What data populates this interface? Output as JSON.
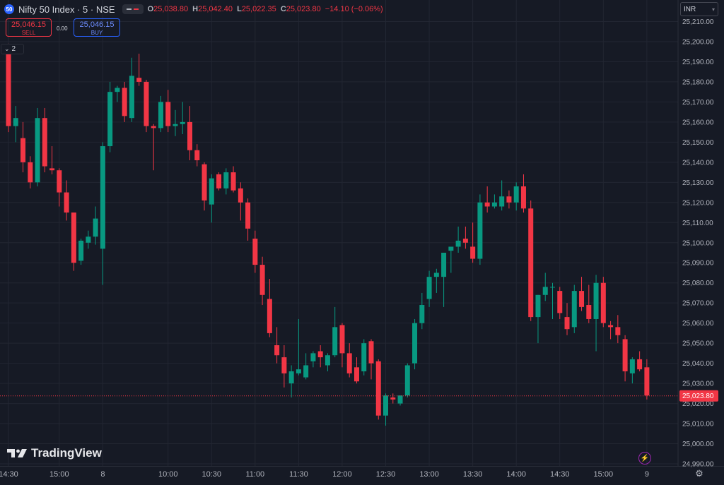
{
  "header": {
    "badge": "50",
    "title": "Nifty 50 Index · 5 · NSE",
    "ohlc": [
      {
        "k": "O",
        "v": "25,038.80"
      },
      {
        "k": "H",
        "v": "25,042.40"
      },
      {
        "k": "L",
        "v": "25,022.35"
      },
      {
        "k": "C",
        "v": "25,023.80"
      },
      {
        "k": "",
        "v": "−14.10 (−0.06%)"
      }
    ]
  },
  "trade": {
    "sell_price": "25,046.15",
    "sell_label": "SELL",
    "spread": "0.00",
    "buy_price": "25,046.15",
    "buy_label": "BUY"
  },
  "legend_count": "2",
  "currency": "INR",
  "brand": "TradingView",
  "colors": {
    "up": "#089981",
    "down": "#f23645",
    "bg": "#161a25",
    "grid": "#222632",
    "text": "#b2b5be"
  },
  "icons": [
    "index-badge-icon",
    "toggle-icon",
    "chevron-down-icon",
    "tradingview-logo-icon",
    "lightning-icon",
    "settings-icon"
  ],
  "chart_data": {
    "type": "candlestick",
    "last_price": 25023.8,
    "last_price_label": "25,023.80",
    "ylim": [
      24990,
      25210
    ],
    "y_ticks": [
      24990,
      25000,
      25010,
      25020,
      25030,
      25040,
      25050,
      25060,
      25070,
      25080,
      25090,
      25100,
      25110,
      25120,
      25130,
      25140,
      25150,
      25160,
      25170,
      25180,
      25190,
      25200,
      25210
    ],
    "y_tick_labels": [
      "24,990.00",
      "25,000.00",
      "25,010.00",
      "25,020.00",
      "25,030.00",
      "25,040.00",
      "25,050.00",
      "25,060.00",
      "25,070.00",
      "25,080.00",
      "25,090.00",
      "25,100.00",
      "25,110.00",
      "25,120.00",
      "25,130.00",
      "25,140.00",
      "25,150.00",
      "25,160.00",
      "25,170.00",
      "25,180.00",
      "25,190.00",
      "25,200.00",
      "25,210.00"
    ],
    "x_ticks": [
      {
        "i": 0,
        "label": "14:30"
      },
      {
        "i": 7,
        "label": "15:00"
      },
      {
        "i": 13,
        "label": "8"
      },
      {
        "i": 22,
        "label": "10:00"
      },
      {
        "i": 28,
        "label": "10:30"
      },
      {
        "i": 34,
        "label": "11:00"
      },
      {
        "i": 40,
        "label": "11:30"
      },
      {
        "i": 46,
        "label": "12:00"
      },
      {
        "i": 52,
        "label": "12:30"
      },
      {
        "i": 58,
        "label": "13:00"
      },
      {
        "i": 64,
        "label": "13:30"
      },
      {
        "i": 70,
        "label": "14:00"
      },
      {
        "i": 76,
        "label": "14:30"
      },
      {
        "i": 82,
        "label": "15:00"
      },
      {
        "i": 88,
        "label": "9"
      }
    ],
    "candles": [
      {
        "o": 25197,
        "h": 25199,
        "l": 25155,
        "c": 25158
      },
      {
        "o": 25158,
        "h": 25168,
        "l": 25150,
        "c": 25162
      },
      {
        "o": 25152,
        "h": 25160,
        "l": 25135,
        "c": 25140
      },
      {
        "o": 25140,
        "h": 25143,
        "l": 25127,
        "c": 25130
      },
      {
        "o": 25130,
        "h": 25167,
        "l": 25128,
        "c": 25162
      },
      {
        "o": 25162,
        "h": 25167,
        "l": 25135,
        "c": 25138
      },
      {
        "o": 25137,
        "h": 25148,
        "l": 25134,
        "c": 25136
      },
      {
        "o": 25136,
        "h": 25137,
        "l": 25118,
        "c": 25125
      },
      {
        "o": 25125,
        "h": 25131,
        "l": 25111,
        "c": 25115
      },
      {
        "o": 25115,
        "h": 25115,
        "l": 25086,
        "c": 25090
      },
      {
        "o": 25091,
        "h": 25102,
        "l": 25089,
        "c": 25101
      },
      {
        "o": 25100,
        "h": 25106,
        "l": 25097,
        "c": 25103
      },
      {
        "o": 25103,
        "h": 25118,
        "l": 25099,
        "c": 25112
      },
      {
        "o": 25097,
        "h": 25150,
        "l": 25079,
        "c": 25148
      },
      {
        "o": 25148,
        "h": 25180,
        "l": 25145,
        "c": 25175
      },
      {
        "o": 25175,
        "h": 25178,
        "l": 25170,
        "c": 25177
      },
      {
        "o": 25177,
        "h": 25180,
        "l": 25160,
        "c": 25163
      },
      {
        "o": 25162,
        "h": 25192,
        "l": 25160,
        "c": 25183
      },
      {
        "o": 25182,
        "h": 25194,
        "l": 25178,
        "c": 25180
      },
      {
        "o": 25180,
        "h": 25181,
        "l": 25155,
        "c": 25158
      },
      {
        "o": 25158,
        "h": 25159,
        "l": 25136,
        "c": 25157
      },
      {
        "o": 25157,
        "h": 25173,
        "l": 25155,
        "c": 25170
      },
      {
        "o": 25170,
        "h": 25176,
        "l": 25155,
        "c": 25158
      },
      {
        "o": 25158,
        "h": 25166,
        "l": 25153,
        "c": 25159
      },
      {
        "o": 25159,
        "h": 25170,
        "l": 25154,
        "c": 25160
      },
      {
        "o": 25160,
        "h": 25168,
        "l": 25141,
        "c": 25146
      },
      {
        "o": 25146,
        "h": 25149,
        "l": 25138,
        "c": 25141
      },
      {
        "o": 25139,
        "h": 25140,
        "l": 25116,
        "c": 25121
      },
      {
        "o": 25119,
        "h": 25134,
        "l": 25110,
        "c": 25132
      },
      {
        "o": 25134,
        "h": 25135,
        "l": 25126,
        "c": 25127
      },
      {
        "o": 25127,
        "h": 25137,
        "l": 25124,
        "c": 25135
      },
      {
        "o": 25135,
        "h": 25138,
        "l": 25125,
        "c": 25126
      },
      {
        "o": 25127,
        "h": 25130,
        "l": 25111,
        "c": 25120
      },
      {
        "o": 25120,
        "h": 25122,
        "l": 25101,
        "c": 25107
      },
      {
        "o": 25102,
        "h": 25106,
        "l": 25085,
        "c": 25089
      },
      {
        "o": 25089,
        "h": 25093,
        "l": 25069,
        "c": 25074
      },
      {
        "o": 25072,
        "h": 25082,
        "l": 25053,
        "c": 25055
      },
      {
        "o": 25049,
        "h": 25058,
        "l": 25040,
        "c": 25044
      },
      {
        "o": 25043,
        "h": 25049,
        "l": 25028,
        "c": 25035
      },
      {
        "o": 25030,
        "h": 25039,
        "l": 25023,
        "c": 25036
      },
      {
        "o": 25035,
        "h": 25062,
        "l": 25034,
        "c": 25037
      },
      {
        "o": 25033,
        "h": 25045,
        "l": 25032,
        "c": 25039
      },
      {
        "o": 25041,
        "h": 25046,
        "l": 25038,
        "c": 25045
      },
      {
        "o": 25046,
        "h": 25049,
        "l": 25038,
        "c": 25043
      },
      {
        "o": 25039,
        "h": 25045,
        "l": 25036,
        "c": 25044
      },
      {
        "o": 25044,
        "h": 25068,
        "l": 25043,
        "c": 25058
      },
      {
        "o": 25059,
        "h": 25060,
        "l": 25038,
        "c": 25045
      },
      {
        "o": 25045,
        "h": 25050,
        "l": 25033,
        "c": 25035
      },
      {
        "o": 25038,
        "h": 25043,
        "l": 25030,
        "c": 25031
      },
      {
        "o": 25036,
        "h": 25052,
        "l": 25034,
        "c": 25050
      },
      {
        "o": 25051,
        "h": 25052,
        "l": 25032,
        "c": 25040
      },
      {
        "o": 25041,
        "h": 25042,
        "l": 25012,
        "c": 25014
      },
      {
        "o": 25014,
        "h": 25025,
        "l": 25009,
        "c": 25024
      },
      {
        "o": 25023,
        "h": 25025,
        "l": 25020,
        "c": 25022
      },
      {
        "o": 25020,
        "h": 25024,
        "l": 25019,
        "c": 25024
      },
      {
        "o": 25024,
        "h": 25040,
        "l": 25023,
        "c": 25039
      },
      {
        "o": 25040,
        "h": 25062,
        "l": 25037,
        "c": 25060
      },
      {
        "o": 25060,
        "h": 25075,
        "l": 25057,
        "c": 25069
      },
      {
        "o": 25072,
        "h": 25086,
        "l": 25068,
        "c": 25083
      },
      {
        "o": 25083,
        "h": 25087,
        "l": 25075,
        "c": 25085
      },
      {
        "o": 25083,
        "h": 25093,
        "l": 25068,
        "c": 25095
      },
      {
        "o": 25096,
        "h": 25097,
        "l": 25085,
        "c": 25098
      },
      {
        "o": 25098,
        "h": 25108,
        "l": 25095,
        "c": 25101
      },
      {
        "o": 25102,
        "h": 25108,
        "l": 25097,
        "c": 25100
      },
      {
        "o": 25098,
        "h": 25110,
        "l": 25090,
        "c": 25092
      },
      {
        "o": 25092,
        "h": 25124,
        "l": 25089,
        "c": 25120
      },
      {
        "o": 25120,
        "h": 25128,
        "l": 25115,
        "c": 25118
      },
      {
        "o": 25118,
        "h": 25124,
        "l": 25117,
        "c": 25120
      },
      {
        "o": 25118,
        "h": 25131,
        "l": 25116,
        "c": 25123
      },
      {
        "o": 25123,
        "h": 25126,
        "l": 25117,
        "c": 25120
      },
      {
        "o": 25120,
        "h": 25130,
        "l": 25116,
        "c": 25128
      },
      {
        "o": 25128,
        "h": 25134,
        "l": 25115,
        "c": 25117
      },
      {
        "o": 25117,
        "h": 25121,
        "l": 25061,
        "c": 25063
      },
      {
        "o": 25063,
        "h": 25074,
        "l": 25050,
        "c": 25074
      },
      {
        "o": 25074,
        "h": 25085,
        "l": 25071,
        "c": 25078
      },
      {
        "o": 25078,
        "h": 25080,
        "l": 25062,
        "c": 25078
      },
      {
        "o": 25076,
        "h": 25078,
        "l": 25062,
        "c": 25065
      },
      {
        "o": 25063,
        "h": 25070,
        "l": 25054,
        "c": 25057
      },
      {
        "o": 25058,
        "h": 25079,
        "l": 25055,
        "c": 25076
      },
      {
        "o": 25076,
        "h": 25083,
        "l": 25066,
        "c": 25068
      },
      {
        "o": 25069,
        "h": 25079,
        "l": 25060,
        "c": 25062
      },
      {
        "o": 25062,
        "h": 25084,
        "l": 25046,
        "c": 25080
      },
      {
        "o": 25080,
        "h": 25083,
        "l": 25058,
        "c": 25060
      },
      {
        "o": 25059,
        "h": 25061,
        "l": 25052,
        "c": 25058
      },
      {
        "o": 25058,
        "h": 25064,
        "l": 25050,
        "c": 25054
      },
      {
        "o": 25052,
        "h": 25054,
        "l": 25031,
        "c": 25036
      },
      {
        "o": 25035,
        "h": 25043,
        "l": 25030,
        "c": 25042
      },
      {
        "o": 25042,
        "h": 25046,
        "l": 25036,
        "c": 25037
      },
      {
        "o": 25038,
        "h": 25042,
        "l": 25022,
        "c": 25024
      }
    ]
  }
}
